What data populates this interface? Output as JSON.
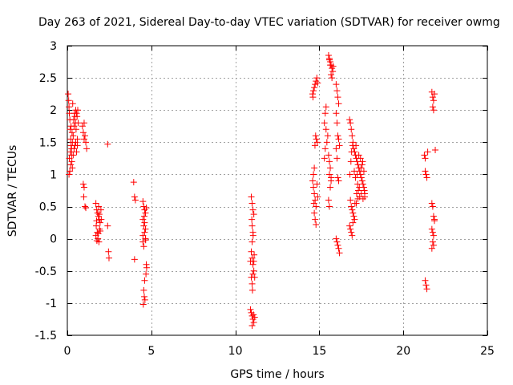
{
  "chart_data": {
    "type": "scatter",
    "title": "Day 263 of 2021, Sidereal Day-to-day VTEC variation (SDTVAR) for receiver owmg",
    "xlabel": "GPS time / hours",
    "ylabel": "SDTVAR / TECUs",
    "xlim": [
      0,
      25
    ],
    "ylim": [
      -1.5,
      3
    ],
    "xticks": [
      0,
      5,
      10,
      15,
      20,
      25
    ],
    "yticks": [
      -1.5,
      -1,
      -0.5,
      0,
      0.5,
      1,
      1.5,
      2,
      2.5,
      3
    ],
    "xtick_labels": [
      "0",
      "5",
      "10",
      "15",
      "20",
      "25"
    ],
    "ytick_labels": [
      "-1.5",
      "-1",
      "-0.5",
      "0",
      "0.5",
      "1",
      "1.5",
      "2",
      "2.5",
      "3"
    ],
    "grid": true,
    "marker": "+",
    "color": "#ff0000",
    "series": [
      {
        "name": "owmg",
        "points": [
          [
            0.05,
            2.25
          ],
          [
            0.08,
            2.15
          ],
          [
            0.1,
            2.05
          ],
          [
            0.12,
            1.95
          ],
          [
            0.15,
            1.85
          ],
          [
            0.17,
            1.7
          ],
          [
            0.2,
            1.55
          ],
          [
            0.22,
            1.45
          ],
          [
            0.25,
            1.3
          ],
          [
            0.27,
            1.2
          ],
          [
            0.3,
            1.1
          ],
          [
            0.1,
            1.0
          ],
          [
            0.15,
            1.05
          ],
          [
            0.2,
            1.15
          ],
          [
            0.12,
            1.25
          ],
          [
            0.18,
            1.35
          ],
          [
            0.25,
            1.4
          ],
          [
            0.3,
            1.5
          ],
          [
            0.35,
            1.6
          ],
          [
            0.4,
            1.75
          ],
          [
            0.45,
            1.9
          ],
          [
            0.5,
            2.0
          ],
          [
            0.55,
            1.95
          ],
          [
            0.35,
            1.3
          ],
          [
            0.4,
            1.4
          ],
          [
            0.45,
            1.45
          ],
          [
            0.5,
            1.5
          ],
          [
            0.55,
            1.35
          ],
          [
            0.6,
            1.45
          ],
          [
            0.38,
            1.85
          ],
          [
            0.42,
            1.95
          ],
          [
            0.48,
            1.8
          ],
          [
            0.52,
            1.7
          ],
          [
            0.58,
            1.9
          ],
          [
            0.62,
            2.0
          ],
          [
            0.32,
            2.1
          ],
          [
            0.28,
            1.65
          ],
          [
            0.22,
            1.75
          ],
          [
            0.65,
            1.8
          ],
          [
            0.6,
            1.55
          ],
          [
            0.9,
            1.75
          ],
          [
            0.95,
            1.65
          ],
          [
            1.0,
            1.55
          ],
          [
            1.05,
            1.6
          ],
          [
            1.1,
            1.5
          ],
          [
            1.0,
            1.8
          ],
          [
            0.95,
            0.85
          ],
          [
            1.0,
            0.8
          ],
          [
            0.98,
            0.65
          ],
          [
            1.05,
            0.5
          ],
          [
            1.1,
            0.48
          ],
          [
            1.15,
            1.4
          ],
          [
            1.7,
            0.55
          ],
          [
            1.75,
            0.45
          ],
          [
            1.8,
            0.4
          ],
          [
            1.85,
            0.35
          ],
          [
            1.9,
            0.3
          ],
          [
            1.72,
            0.2
          ],
          [
            1.78,
            0.1
          ],
          [
            1.82,
            0.0
          ],
          [
            1.88,
            -0.05
          ],
          [
            1.92,
            0.15
          ],
          [
            1.95,
            0.25
          ],
          [
            2.0,
            0.45
          ],
          [
            1.7,
            0.05
          ],
          [
            1.76,
            -0.03
          ],
          [
            1.84,
            0.08
          ],
          [
            1.9,
            0.38
          ],
          [
            1.96,
            0.12
          ],
          [
            2.02,
            0.3
          ],
          [
            1.74,
            0.28
          ],
          [
            1.86,
            0.5
          ],
          [
            2.4,
            1.47
          ],
          [
            2.4,
            0.2
          ],
          [
            2.45,
            -0.2
          ],
          [
            2.48,
            -0.3
          ],
          [
            3.95,
            0.88
          ],
          [
            4.0,
            0.65
          ],
          [
            4.05,
            0.6
          ],
          [
            4.0,
            -0.32
          ],
          [
            4.5,
            0.58
          ],
          [
            4.55,
            0.5
          ],
          [
            4.6,
            0.45
          ],
          [
            4.65,
            0.4
          ],
          [
            4.5,
            0.3
          ],
          [
            4.55,
            0.2
          ],
          [
            4.6,
            0.1
          ],
          [
            4.65,
            0.0
          ],
          [
            4.5,
            -0.05
          ],
          [
            4.55,
            -0.12
          ],
          [
            4.6,
            0.25
          ],
          [
            4.65,
            0.15
          ],
          [
            4.7,
            -0.4
          ],
          [
            4.72,
            -0.45
          ],
          [
            4.68,
            -0.55
          ],
          [
            4.6,
            -0.65
          ],
          [
            4.55,
            -0.8
          ],
          [
            4.58,
            -0.9
          ],
          [
            4.52,
            -1.02
          ],
          [
            4.62,
            -0.95
          ],
          [
            4.7,
            0.48
          ],
          [
            4.5,
            0.05
          ],
          [
            4.58,
            0.35
          ],
          [
            4.66,
            -0.02
          ],
          [
            10.95,
            0.65
          ],
          [
            11.0,
            0.55
          ],
          [
            11.05,
            0.45
          ],
          [
            11.1,
            0.38
          ],
          [
            11.0,
            0.2
          ],
          [
            11.05,
            0.1
          ],
          [
            11.0,
            -0.05
          ],
          [
            10.95,
            -0.2
          ],
          [
            11.0,
            -0.3
          ],
          [
            11.05,
            -0.4
          ],
          [
            11.1,
            -0.5
          ],
          [
            10.95,
            -0.6
          ],
          [
            11.0,
            -0.7
          ],
          [
            11.05,
            -0.55
          ],
          [
            11.1,
            -0.35
          ],
          [
            11.15,
            -0.6
          ],
          [
            10.9,
            -0.35
          ],
          [
            10.95,
            -1.15
          ],
          [
            11.0,
            -1.2
          ],
          [
            11.05,
            -1.25
          ],
          [
            11.1,
            -1.3
          ],
          [
            11.15,
            -1.22
          ],
          [
            10.9,
            -1.1
          ],
          [
            11.0,
            -1.35
          ],
          [
            11.08,
            -1.18
          ],
          [
            11.02,
            -0.8
          ],
          [
            11.12,
            -0.25
          ],
          [
            10.98,
            0.3
          ],
          [
            11.06,
            0.05
          ],
          [
            14.6,
            0.9
          ],
          [
            14.65,
            0.8
          ],
          [
            14.7,
            0.7
          ],
          [
            14.75,
            0.6
          ],
          [
            14.8,
            0.5
          ],
          [
            14.7,
            0.4
          ],
          [
            14.75,
            0.3
          ],
          [
            14.8,
            0.22
          ],
          [
            14.65,
            1.0
          ],
          [
            14.7,
            1.1
          ],
          [
            14.6,
            2.25
          ],
          [
            14.65,
            2.3
          ],
          [
            14.7,
            2.35
          ],
          [
            14.75,
            2.4
          ],
          [
            14.8,
            2.45
          ],
          [
            14.85,
            2.5
          ],
          [
            14.9,
            2.42
          ],
          [
            14.62,
            2.2
          ],
          [
            14.78,
            1.6
          ],
          [
            14.82,
            1.55
          ],
          [
            14.88,
            1.5
          ],
          [
            14.74,
            1.45
          ],
          [
            14.86,
            0.85
          ],
          [
            14.9,
            0.65
          ],
          [
            14.68,
            0.55
          ],
          [
            15.3,
            1.8
          ],
          [
            15.4,
            1.7
          ],
          [
            15.5,
            1.6
          ],
          [
            15.35,
            1.4
          ],
          [
            15.45,
            1.5
          ],
          [
            15.3,
            1.25
          ],
          [
            15.4,
            2.05
          ],
          [
            15.35,
            1.95
          ],
          [
            15.55,
            2.85
          ],
          [
            15.6,
            2.8
          ],
          [
            15.65,
            2.75
          ],
          [
            15.7,
            2.7
          ],
          [
            15.75,
            2.65
          ],
          [
            15.8,
            2.6
          ],
          [
            15.7,
            2.55
          ],
          [
            15.75,
            2.5
          ],
          [
            15.6,
            2.78
          ],
          [
            15.65,
            2.7
          ],
          [
            15.82,
            2.68
          ],
          [
            15.55,
            1.3
          ],
          [
            15.6,
            1.2
          ],
          [
            15.65,
            1.1
          ],
          [
            15.6,
            1.0
          ],
          [
            15.7,
            0.9
          ],
          [
            15.65,
            0.8
          ],
          [
            15.55,
            0.6
          ],
          [
            15.6,
            0.5
          ],
          [
            15.7,
            0.95
          ],
          [
            16.0,
            2.4
          ],
          [
            16.05,
            2.3
          ],
          [
            16.1,
            2.2
          ],
          [
            16.15,
            2.1
          ],
          [
            16.0,
            1.95
          ],
          [
            16.05,
            1.8
          ],
          [
            16.1,
            1.6
          ],
          [
            16.15,
            1.55
          ],
          [
            16.2,
            1.45
          ],
          [
            16.0,
            1.4
          ],
          [
            16.05,
            1.25
          ],
          [
            16.1,
            0.95
          ],
          [
            16.15,
            0.9
          ],
          [
            16.05,
            -0.05
          ],
          [
            16.1,
            -0.1
          ],
          [
            16.15,
            -0.15
          ],
          [
            16.2,
            -0.22
          ],
          [
            16.0,
            0.0
          ],
          [
            16.8,
            1.85
          ],
          [
            16.85,
            1.8
          ],
          [
            16.9,
            1.7
          ],
          [
            16.95,
            1.6
          ],
          [
            17.0,
            1.5
          ],
          [
            17.05,
            1.4
          ],
          [
            17.1,
            1.35
          ],
          [
            17.15,
            1.3
          ],
          [
            17.2,
            1.25
          ],
          [
            17.25,
            1.2
          ],
          [
            17.3,
            1.15
          ],
          [
            17.35,
            1.1
          ],
          [
            17.4,
            1.05
          ],
          [
            17.45,
            1.0
          ],
          [
            17.5,
            0.95
          ],
          [
            17.55,
            0.9
          ],
          [
            17.6,
            0.85
          ],
          [
            17.65,
            0.8
          ],
          [
            17.7,
            0.7
          ],
          [
            16.85,
            0.6
          ],
          [
            16.9,
            0.5
          ],
          [
            16.95,
            0.45
          ],
          [
            17.0,
            0.4
          ],
          [
            17.05,
            0.35
          ],
          [
            17.1,
            0.3
          ],
          [
            16.8,
            0.2
          ],
          [
            16.85,
            0.15
          ],
          [
            16.9,
            0.1
          ],
          [
            16.95,
            0.05
          ],
          [
            17.0,
            0.25
          ],
          [
            17.2,
            0.55
          ],
          [
            17.3,
            0.62
          ],
          [
            17.4,
            0.65
          ],
          [
            17.5,
            0.7
          ],
          [
            17.6,
            0.62
          ],
          [
            17.7,
            0.65
          ],
          [
            17.15,
            0.95
          ],
          [
            17.25,
            1.0
          ],
          [
            17.35,
            1.3
          ],
          [
            17.45,
            1.25
          ],
          [
            17.55,
            1.15
          ],
          [
            17.65,
            1.05
          ],
          [
            16.82,
            1.0
          ],
          [
            16.88,
            1.2
          ],
          [
            16.92,
            1.35
          ],
          [
            16.98,
            1.45
          ],
          [
            17.08,
            1.05
          ],
          [
            17.18,
            1.45
          ],
          [
            17.28,
            0.85
          ],
          [
            17.38,
            0.8
          ],
          [
            17.48,
            1.1
          ],
          [
            17.58,
            1.2
          ],
          [
            17.68,
            0.75
          ],
          [
            17.12,
            0.55
          ],
          [
            17.22,
            0.7
          ],
          [
            17.32,
            0.75
          ],
          [
            21.3,
            -0.65
          ],
          [
            21.35,
            -0.72
          ],
          [
            21.4,
            -0.78
          ],
          [
            21.25,
            1.3
          ],
          [
            21.3,
            1.25
          ],
          [
            21.35,
            1.0
          ],
          [
            21.4,
            0.95
          ],
          [
            21.45,
            1.35
          ],
          [
            21.3,
            1.05
          ],
          [
            21.7,
            2.28
          ],
          [
            21.75,
            2.2
          ],
          [
            21.8,
            2.15
          ],
          [
            21.85,
            2.25
          ],
          [
            21.75,
            2.05
          ],
          [
            21.8,
            2.0
          ],
          [
            21.7,
            0.55
          ],
          [
            21.75,
            0.5
          ],
          [
            21.8,
            0.35
          ],
          [
            21.85,
            0.3
          ],
          [
            21.7,
            0.15
          ],
          [
            21.75,
            0.1
          ],
          [
            21.8,
            0.05
          ],
          [
            21.75,
            -0.05
          ],
          [
            21.8,
            -0.1
          ],
          [
            21.7,
            -0.15
          ],
          [
            21.85,
            0.28
          ],
          [
            21.9,
            1.38
          ]
        ]
      }
    ]
  }
}
